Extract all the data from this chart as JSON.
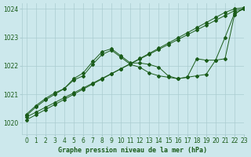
{
  "title": "Graphe pression niveau de la mer (hPa)",
  "background_color": "#cce8ec",
  "grid_color": "#aaccd0",
  "line_color": "#1a5c1a",
  "xlim": [
    -0.5,
    23
  ],
  "ylim": [
    1019.6,
    1024.2
  ],
  "yticks": [
    1020,
    1021,
    1022,
    1023,
    1024
  ],
  "xticks": [
    0,
    1,
    2,
    3,
    4,
    5,
    6,
    7,
    8,
    9,
    10,
    11,
    12,
    13,
    14,
    15,
    16,
    17,
    18,
    19,
    20,
    21,
    22,
    23
  ],
  "series": [
    {
      "x": [
        0,
        1,
        2,
        3,
        4,
        5,
        6,
        7,
        8,
        9,
        10,
        11,
        12,
        13,
        14,
        15,
        16,
        17,
        18,
        19,
        20,
        21,
        22,
        23
      ],
      "y": [
        1020.2,
        1020.37,
        1020.54,
        1020.71,
        1020.88,
        1021.05,
        1021.22,
        1021.39,
        1021.56,
        1021.73,
        1021.9,
        1022.07,
        1022.24,
        1022.41,
        1022.58,
        1022.75,
        1022.92,
        1023.09,
        1023.26,
        1023.43,
        1023.6,
        1023.77,
        1023.94,
        1024.0
      ]
    },
    {
      "x": [
        0,
        1,
        2,
        3,
        4,
        5,
        6,
        7,
        8,
        9,
        10,
        11,
        12,
        13,
        14,
        15,
        16,
        17,
        18,
        19,
        20,
        21,
        22,
        23
      ],
      "y": [
        1020.1,
        1020.28,
        1020.46,
        1020.64,
        1020.82,
        1021.0,
        1021.18,
        1021.36,
        1021.54,
        1021.72,
        1021.9,
        1022.08,
        1022.26,
        1022.44,
        1022.62,
        1022.8,
        1022.98,
        1023.16,
        1023.34,
        1023.52,
        1023.7,
        1023.88,
        1024.0,
        1024.05
      ]
    },
    {
      "x": [
        0,
        1,
        2,
        3,
        4,
        5,
        6,
        7,
        8,
        9,
        10,
        11,
        12,
        13,
        14,
        15,
        16,
        17,
        18,
        19,
        20,
        21,
        22,
        23
      ],
      "y": [
        1020.3,
        1020.6,
        1020.85,
        1021.05,
        1021.2,
        1021.55,
        1021.75,
        1022.15,
        1022.5,
        1022.6,
        1022.35,
        1022.1,
        1022.1,
        1022.05,
        1021.95,
        1021.65,
        1021.55,
        1021.6,
        1022.25,
        1022.2,
        1022.2,
        1023.0,
        1023.85,
        1024.0
      ]
    },
    {
      "x": [
        0,
        1,
        2,
        3,
        4,
        5,
        6,
        7,
        8,
        9,
        10,
        11,
        12,
        13,
        14,
        15,
        16,
        17,
        18,
        19,
        20,
        21,
        22,
        23
      ],
      "y": [
        1020.25,
        1020.55,
        1020.8,
        1021.0,
        1021.2,
        1021.5,
        1021.65,
        1022.05,
        1022.4,
        1022.55,
        1022.3,
        1022.05,
        1021.95,
        1021.75,
        1021.65,
        1021.6,
        1021.55,
        1021.6,
        1021.65,
        1021.7,
        1022.2,
        1022.25,
        1023.8,
        1024.05
      ]
    }
  ]
}
